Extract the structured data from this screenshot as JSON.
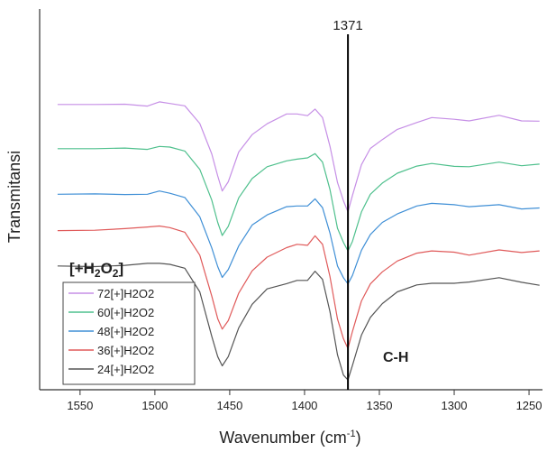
{
  "chart_data": {
    "type": "line",
    "xlabel": "Wavenumber",
    "xlabel_unit": "(cm",
    "xlabel_sup": "-1",
    "xlabel_close": ")",
    "ylabel": "Transmitansi",
    "x_reversed": true,
    "xlim": [
      1577,
      1241
    ],
    "ylim": [
      0,
      100
    ],
    "x_ticks": [
      1550,
      1500,
      1450,
      1400,
      1350,
      1300,
      1250
    ],
    "y_ticks_shown": false,
    "grid": false,
    "legend_position": "bottom-left",
    "legend_title": {
      "prefix": "[+H",
      "sub1": "2",
      "mid": "O",
      "sub2": "2",
      "suffix": "]"
    },
    "peak_marker": {
      "x": 1371,
      "label": "1371"
    },
    "annotation": "C-H",
    "series": [
      {
        "name": "72[+]H2O2",
        "color": "#c68fe6",
        "points": [
          [
            1565,
            86.0
          ],
          [
            1540,
            86.0
          ],
          [
            1520,
            86.1
          ],
          [
            1505,
            85.5
          ],
          [
            1497,
            86.8
          ],
          [
            1490,
            86.3
          ],
          [
            1480,
            85.6
          ],
          [
            1470,
            80.2
          ],
          [
            1462,
            70.9
          ],
          [
            1458,
            64.2
          ],
          [
            1455,
            59.6
          ],
          [
            1451,
            62.4
          ],
          [
            1444,
            71.5
          ],
          [
            1435,
            76.8
          ],
          [
            1425,
            80.1
          ],
          [
            1412,
            83.1
          ],
          [
            1405,
            83.1
          ],
          [
            1398,
            82.6
          ],
          [
            1393,
            84.6
          ],
          [
            1388,
            82.0
          ],
          [
            1383,
            73.2
          ],
          [
            1378,
            62.2
          ],
          [
            1374,
            56.6
          ],
          [
            1371,
            53.2
          ],
          [
            1368,
            58.2
          ],
          [
            1362,
            67.6
          ],
          [
            1356,
            72.6
          ],
          [
            1348,
            75.3
          ],
          [
            1338,
            78.4
          ],
          [
            1325,
            80.5
          ],
          [
            1315,
            82.0
          ],
          [
            1300,
            81.5
          ],
          [
            1290,
            81.0
          ],
          [
            1270,
            82.7
          ],
          [
            1255,
            81.0
          ],
          [
            1243,
            80.9
          ]
        ]
      },
      {
        "name": "60[+]H2O2",
        "color": "#4fc08d",
        "points": [
          [
            1565,
            72.5
          ],
          [
            1540,
            72.5
          ],
          [
            1520,
            72.7
          ],
          [
            1505,
            72.3
          ],
          [
            1497,
            73.2
          ],
          [
            1490,
            73.0
          ],
          [
            1480,
            71.8
          ],
          [
            1470,
            66.2
          ],
          [
            1462,
            56.8
          ],
          [
            1458,
            50.0
          ],
          [
            1455,
            46.0
          ],
          [
            1451,
            48.8
          ],
          [
            1444,
            57.5
          ],
          [
            1435,
            63.4
          ],
          [
            1425,
            67.0
          ],
          [
            1412,
            68.8
          ],
          [
            1405,
            69.3
          ],
          [
            1398,
            69.7
          ],
          [
            1393,
            71.0
          ],
          [
            1388,
            68.4
          ],
          [
            1383,
            60.0
          ],
          [
            1378,
            48.2
          ],
          [
            1374,
            43.9
          ],
          [
            1371,
            41.3
          ],
          [
            1368,
            44.2
          ],
          [
            1362,
            53.2
          ],
          [
            1356,
            58.6
          ],
          [
            1348,
            62.0
          ],
          [
            1338,
            65.0
          ],
          [
            1325,
            67.2
          ],
          [
            1315,
            68.0
          ],
          [
            1300,
            67.1
          ],
          [
            1290,
            67.0
          ],
          [
            1270,
            68.4
          ],
          [
            1255,
            67.3
          ],
          [
            1243,
            67.8
          ]
        ]
      },
      {
        "name": "48[+]H2O2",
        "color": "#3f8fd6",
        "points": [
          [
            1565,
            58.6
          ],
          [
            1540,
            58.7
          ],
          [
            1520,
            58.5
          ],
          [
            1505,
            58.6
          ],
          [
            1497,
            59.6
          ],
          [
            1490,
            58.9
          ],
          [
            1480,
            57.6
          ],
          [
            1470,
            51.7
          ],
          [
            1462,
            42.2
          ],
          [
            1458,
            36.5
          ],
          [
            1455,
            33.2
          ],
          [
            1451,
            35.6
          ],
          [
            1444,
            42.8
          ],
          [
            1435,
            49.2
          ],
          [
            1425,
            52.3
          ],
          [
            1412,
            54.8
          ],
          [
            1405,
            55.0
          ],
          [
            1398,
            55.0
          ],
          [
            1393,
            57.2
          ],
          [
            1388,
            54.5
          ],
          [
            1383,
            46.7
          ],
          [
            1378,
            36.7
          ],
          [
            1374,
            33.1
          ],
          [
            1371,
            31.2
          ],
          [
            1368,
            33.8
          ],
          [
            1362,
            41.5
          ],
          [
            1356,
            46.3
          ],
          [
            1348,
            50.0
          ],
          [
            1338,
            52.6
          ],
          [
            1325,
            55.0
          ],
          [
            1315,
            55.8
          ],
          [
            1300,
            55.4
          ],
          [
            1290,
            54.8
          ],
          [
            1270,
            55.4
          ],
          [
            1255,
            54.1
          ],
          [
            1243,
            54.4
          ]
        ]
      },
      {
        "name": "36[+]H2O2",
        "color": "#e05a5a",
        "points": [
          [
            1565,
            47.5
          ],
          [
            1540,
            47.6
          ],
          [
            1520,
            48.1
          ],
          [
            1505,
            48.6
          ],
          [
            1497,
            48.9
          ],
          [
            1490,
            48.4
          ],
          [
            1480,
            47.0
          ],
          [
            1470,
            40.0
          ],
          [
            1462,
            27.5
          ],
          [
            1458,
            20.6
          ],
          [
            1455,
            17.4
          ],
          [
            1451,
            20.0
          ],
          [
            1444,
            28.4
          ],
          [
            1435,
            35.2
          ],
          [
            1425,
            39.4
          ],
          [
            1412,
            42.3
          ],
          [
            1405,
            43.3
          ],
          [
            1398,
            43.0
          ],
          [
            1393,
            45.9
          ],
          [
            1388,
            43.3
          ],
          [
            1383,
            33.4
          ],
          [
            1378,
            20.5
          ],
          [
            1374,
            14.5
          ],
          [
            1371,
            11.5
          ],
          [
            1368,
            16.7
          ],
          [
            1362,
            26.0
          ],
          [
            1356,
            31.2
          ],
          [
            1348,
            34.9
          ],
          [
            1338,
            38.2
          ],
          [
            1325,
            40.6
          ],
          [
            1315,
            41.3
          ],
          [
            1300,
            40.9
          ],
          [
            1290,
            40.0
          ],
          [
            1270,
            41.6
          ],
          [
            1255,
            40.8
          ],
          [
            1243,
            41.3
          ]
        ]
      },
      {
        "name": "24[+]H2O2",
        "color": "#555555",
        "points": [
          [
            1565,
            36.7
          ],
          [
            1540,
            36.5
          ],
          [
            1520,
            36.9
          ],
          [
            1505,
            37.5
          ],
          [
            1497,
            37.5
          ],
          [
            1490,
            37.2
          ],
          [
            1480,
            36.0
          ],
          [
            1470,
            28.8
          ],
          [
            1462,
            15.2
          ],
          [
            1458,
            9.0
          ],
          [
            1455,
            6.2
          ],
          [
            1451,
            9.0
          ],
          [
            1444,
            17.8
          ],
          [
            1435,
            25.0
          ],
          [
            1425,
            29.7
          ],
          [
            1412,
            31.3
          ],
          [
            1405,
            32.3
          ],
          [
            1398,
            32.3
          ],
          [
            1393,
            35.1
          ],
          [
            1388,
            32.6
          ],
          [
            1383,
            22.7
          ],
          [
            1378,
            9.6
          ],
          [
            1374,
            3.4
          ],
          [
            1371,
            1.9
          ],
          [
            1368,
            6.3
          ],
          [
            1362,
            15.6
          ],
          [
            1356,
            21.0
          ],
          [
            1348,
            25.2
          ],
          [
            1338,
            28.8
          ],
          [
            1325,
            30.9
          ],
          [
            1315,
            31.4
          ],
          [
            1300,
            31.4
          ],
          [
            1290,
            31.8
          ],
          [
            1270,
            33.1
          ],
          [
            1255,
            31.7
          ],
          [
            1243,
            30.8
          ]
        ]
      }
    ]
  }
}
